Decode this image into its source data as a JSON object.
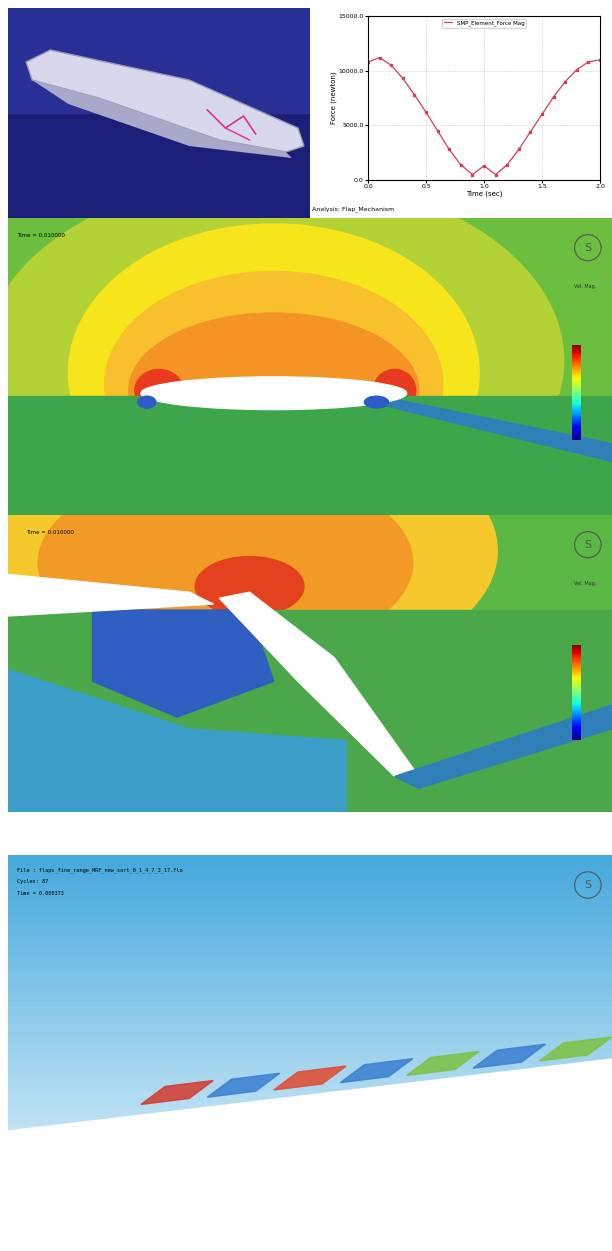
{
  "chart_data": {
    "type": "line",
    "analysis": "Analysis: Flap_Mechanism",
    "x_label": "Time (sec)",
    "y_label": "Force (newton)",
    "x": [
      0.0,
      0.1,
      0.2,
      0.3,
      0.4,
      0.5,
      0.6,
      0.7,
      0.8,
      0.9,
      1.0,
      1.1,
      1.2,
      1.3,
      1.4,
      1.5,
      1.6,
      1.7,
      1.8,
      1.9,
      2.0
    ],
    "series": [
      {
        "name": "SMP_Element_Force Mag",
        "color": "#d0405a",
        "marker": "square",
        "values": [
          10800,
          11200,
          10500,
          9300,
          7800,
          6200,
          4500,
          2800,
          1400,
          500,
          1300,
          500,
          1400,
          2800,
          4400,
          6000,
          7600,
          9000,
          10100,
          10800,
          11000
        ]
      }
    ],
    "xlim": [
      0.0,
      2.0
    ],
    "xticks": [
      {
        "value": 0.0,
        "label": "0.0"
      },
      {
        "value": 0.5,
        "label": "0.5"
      },
      {
        "value": 1.0,
        "label": "1.0"
      },
      {
        "value": 1.5,
        "label": "1.5"
      },
      {
        "value": 2.0,
        "label": "2.0"
      }
    ],
    "ylim": [
      0,
      15000
    ],
    "yticks": [
      {
        "value": 0,
        "label": "0.0"
      },
      {
        "value": 5000,
        "label": "5000.0"
      },
      {
        "value": 10000,
        "label": "10000.0"
      },
      {
        "value": 15000,
        "label": "15000.0"
      }
    ],
    "grid": true,
    "legend": "upper center"
  },
  "contours": [
    {
      "time_label": "Time = 0.010000",
      "colorbar_title": "Vel. Mag."
    },
    {
      "time_label": "Time = 0.010000",
      "colorbar_title": "Vel. Mag."
    }
  ],
  "particles": {
    "file_label": "File : flaps_fine_range_MRF_new_sort_0_1_4_7_3_17.flo",
    "cycles_label": "Cycles: 87",
    "time_label": "Time = 0.000373"
  },
  "logo": "S"
}
